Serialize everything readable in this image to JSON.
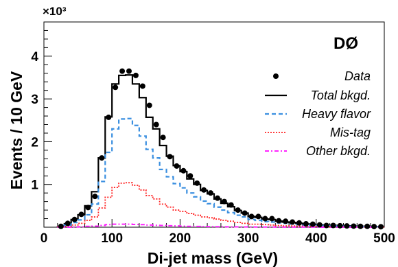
{
  "chart_data": {
    "type": "line",
    "xlabel": "Di-jet mass  (GeV)",
    "ylabel": "Events / 10 GeV",
    "exponent_label": "×10³",
    "corner_label": "DØ",
    "xlim": [
      0,
      500
    ],
    "ylim": [
      0,
      4800
    ],
    "x_ticks": [
      0,
      100,
      200,
      300,
      400,
      500
    ],
    "y_ticks": [
      1000,
      2000,
      3000,
      4000
    ],
    "y_tick_labels": [
      "1",
      "2",
      "3",
      "4"
    ],
    "bin_width": 10,
    "bin_edges_start": 20,
    "legend": [
      {
        "name": "Data",
        "style": "marker",
        "color": "#000000"
      },
      {
        "name": "Total bkgd.",
        "style": "solid",
        "color": "#000000"
      },
      {
        "name": "Heavy flavor",
        "style": "dashed",
        "color": "#3a8fe0"
      },
      {
        "name": "Mis-tag",
        "style": "dotted",
        "color": "#ff2020"
      },
      {
        "name": "Other bkgd.",
        "style": "dashdot",
        "color": "#ff22ff"
      }
    ],
    "series": [
      {
        "name": "Data",
        "x": [
          25,
          35,
          45,
          55,
          65,
          75,
          85,
          95,
          105,
          115,
          125,
          135,
          145,
          155,
          165,
          175,
          185,
          195,
          205,
          215,
          225,
          235,
          245,
          255,
          265,
          275,
          285,
          295,
          305,
          315,
          325,
          335,
          345,
          355,
          365,
          375,
          385,
          395,
          405,
          415,
          425,
          435,
          445,
          455,
          465,
          475,
          485,
          495
        ],
        "values": [
          20,
          90,
          180,
          300,
          460,
          720,
          1620,
          2570,
          3270,
          3650,
          3650,
          3550,
          3300,
          2850,
          2400,
          2100,
          1650,
          1430,
          1320,
          1200,
          1030,
          870,
          800,
          680,
          600,
          520,
          400,
          330,
          250,
          250,
          200,
          200,
          150,
          140,
          120,
          100,
          80,
          70,
          55,
          40,
          40,
          35,
          30,
          25,
          20,
          20,
          15,
          10
        ]
      },
      {
        "name": "Total bkgd.",
        "values": [
          10,
          80,
          180,
          290,
          500,
          830,
          1620,
          2580,
          3350,
          3550,
          3560,
          3350,
          3030,
          2570,
          2300,
          1910,
          1660,
          1440,
          1300,
          1130,
          1000,
          860,
          780,
          660,
          560,
          480,
          390,
          330,
          250,
          230,
          190,
          180,
          140,
          120,
          110,
          90,
          75,
          65,
          55,
          45,
          40,
          35,
          30,
          25,
          20,
          20,
          15,
          15
        ]
      },
      {
        "name": "Heavy flavor",
        "values": [
          5,
          50,
          110,
          170,
          290,
          540,
          1070,
          1750,
          2300,
          2530,
          2540,
          2380,
          2130,
          1820,
          1620,
          1350,
          1180,
          1020,
          920,
          800,
          710,
          610,
          550,
          470,
          400,
          340,
          280,
          240,
          180,
          160,
          130,
          120,
          100,
          90,
          75,
          60,
          50,
          45,
          40,
          30,
          28,
          25,
          20,
          18,
          15,
          12,
          10,
          10
        ]
      },
      {
        "name": "Mis-tag",
        "values": [
          5,
          20,
          50,
          90,
          160,
          240,
          450,
          700,
          930,
          1030,
          1040,
          980,
          870,
          740,
          660,
          540,
          470,
          400,
          370,
          320,
          280,
          240,
          220,
          190,
          160,
          140,
          110,
          90,
          70,
          70,
          60,
          50,
          40,
          30,
          30,
          25,
          20,
          20,
          15,
          12,
          10,
          10,
          8,
          6,
          5,
          5,
          4,
          4
        ]
      },
      {
        "name": "Other bkgd.",
        "values": [
          0,
          0,
          5,
          10,
          20,
          25,
          40,
          60,
          70,
          70,
          70,
          65,
          60,
          50,
          45,
          40,
          35,
          30,
          25,
          20,
          18,
          16,
          14,
          12,
          10,
          9,
          8,
          7,
          6,
          5,
          4,
          4,
          3,
          3,
          2,
          2,
          2,
          2,
          1,
          1,
          1,
          1,
          1,
          1,
          1,
          1,
          1,
          1
        ]
      }
    ]
  }
}
